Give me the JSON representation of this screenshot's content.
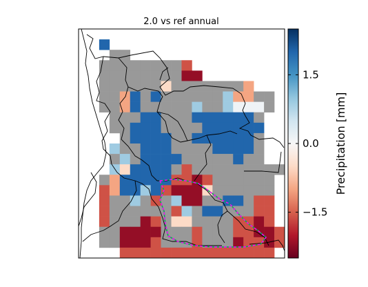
{
  "map": {
    "title": "2.0 vs ref annual",
    "cmap": "RdBu",
    "missing_color": "#999999",
    "grid_cols": 20,
    "grid_rows": 22,
    "cell_rows": [
      "....................",
      "..B.................",
      "...GG...............",
      "..GGGGGGGGR.........",
      "..GGGGGGGGDD........",
      "..GGGGGGPGGGGGGGM...",
      "..GGMBGBGGGGGGLMMGG.",
      "..GGMBGGGGGLGGLWWWG.",
      "...GGGBBGGGBBBBBBG..",
      "...GGBBBGGGGBBBBBB..",
      "....GBBBBGGBBBBBBG..",
      "...LGGBBBGGGGBBBBG..",
      "...GLGBBBBGGGGGBGG..",
      "...LPBBBBGRGGGGGGGGG",
      "..GMBBBBBRRDRGGGGGG.",
      "..RMBBLBRDDDPGGGGGG.",
      "..RGGLGRGLDDGGBBGRR.",
      "..RGGGGGGRLGBBGGGRR.",
      "..RGGGDRGPPGGGGRRDR.",
      "..GGDDDDGGGRGGGRRDDR",
      "..GGDDDRGGGRGGGDRRDR",
      "....RRRRRRRRRRRRRRR."
    ],
    "value_legend": {
      "D": -2.2,
      "R": -1.6,
      "M": -1.0,
      "P": -0.5,
      "W": 0.1,
      "L": 0.9,
      "S": 1.4,
      "B": 2.0,
      "G": null
    },
    "background_color": "#ffffff"
  },
  "colorbar": {
    "label": "Precipitation [mm]",
    "vmin": -2.5,
    "vmax": 2.5,
    "ticks": [
      1.5,
      0.0,
      -1.5
    ],
    "tick_labels": [
      "1.5",
      "0.0",
      "−1.5"
    ]
  }
}
